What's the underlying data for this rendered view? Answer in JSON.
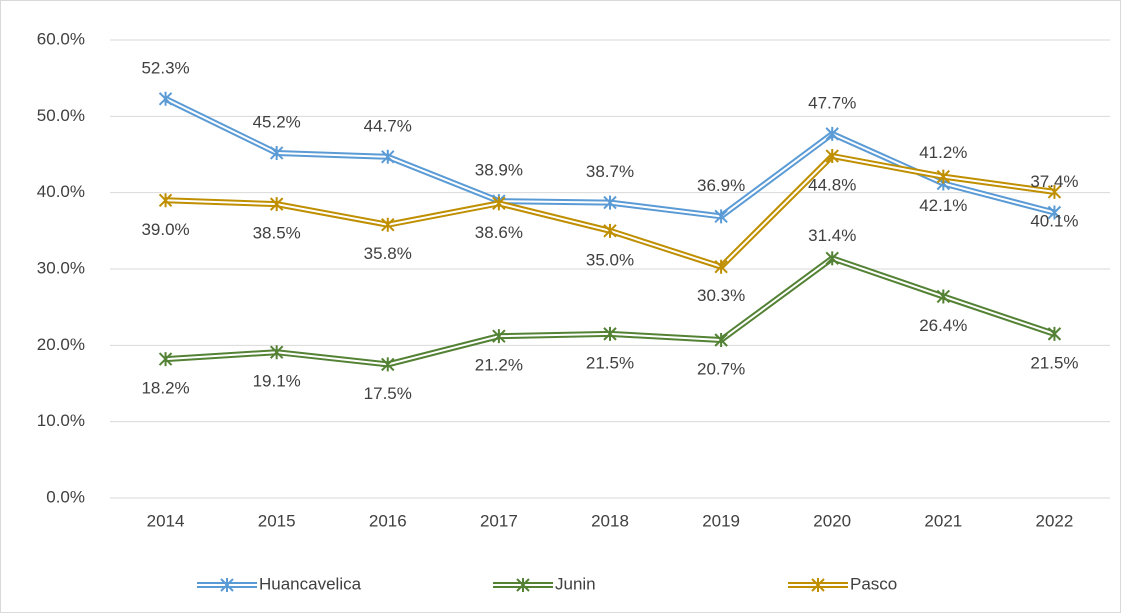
{
  "chart_data": {
    "type": "line",
    "categories": [
      "2014",
      "2015",
      "2016",
      "2017",
      "2018",
      "2019",
      "2020",
      "2021",
      "2022"
    ],
    "series": [
      {
        "name": "Huancavelica",
        "color": "#5b9bd5",
        "values": [
          52.3,
          45.2,
          44.7,
          38.9,
          38.7,
          36.9,
          47.7,
          41.2,
          37.4
        ],
        "value_labels": [
          "52.3%",
          "45.2%",
          "44.7%",
          "38.9%",
          "38.7%",
          "36.9%",
          "47.7%",
          "41.2%",
          "37.4%"
        ]
      },
      {
        "name": "Junin",
        "color": "#548235",
        "values": [
          18.2,
          19.1,
          17.5,
          21.2,
          21.5,
          20.7,
          31.4,
          26.4,
          21.5
        ],
        "value_labels": [
          "18.2%",
          "19.1%",
          "17.5%",
          "21.2%",
          "21.5%",
          "20.7%",
          "31.4%",
          "26.4%",
          "21.5%"
        ]
      },
      {
        "name": "Pasco",
        "color": "#bf8f00",
        "values": [
          39.0,
          38.5,
          35.8,
          38.6,
          35.0,
          30.3,
          44.8,
          42.1,
          40.1
        ],
        "value_labels": [
          "39.0%",
          "38.5%",
          "35.8%",
          "38.6%",
          "35.0%",
          "30.3%",
          "44.8%",
          "42.1%",
          "40.1%"
        ]
      }
    ],
    "ylim": [
      0,
      60
    ],
    "yticks": [
      {
        "value": 0,
        "label": "0.0%"
      },
      {
        "value": 10,
        "label": "10.0%"
      },
      {
        "value": 20,
        "label": "20.0%"
      },
      {
        "value": 30,
        "label": "30.0%"
      },
      {
        "value": 40,
        "label": "40.0%"
      },
      {
        "value": 50,
        "label": "50.0%"
      },
      {
        "value": 60,
        "label": "60.0%"
      }
    ],
    "grid": true,
    "legend": "bottom"
  }
}
